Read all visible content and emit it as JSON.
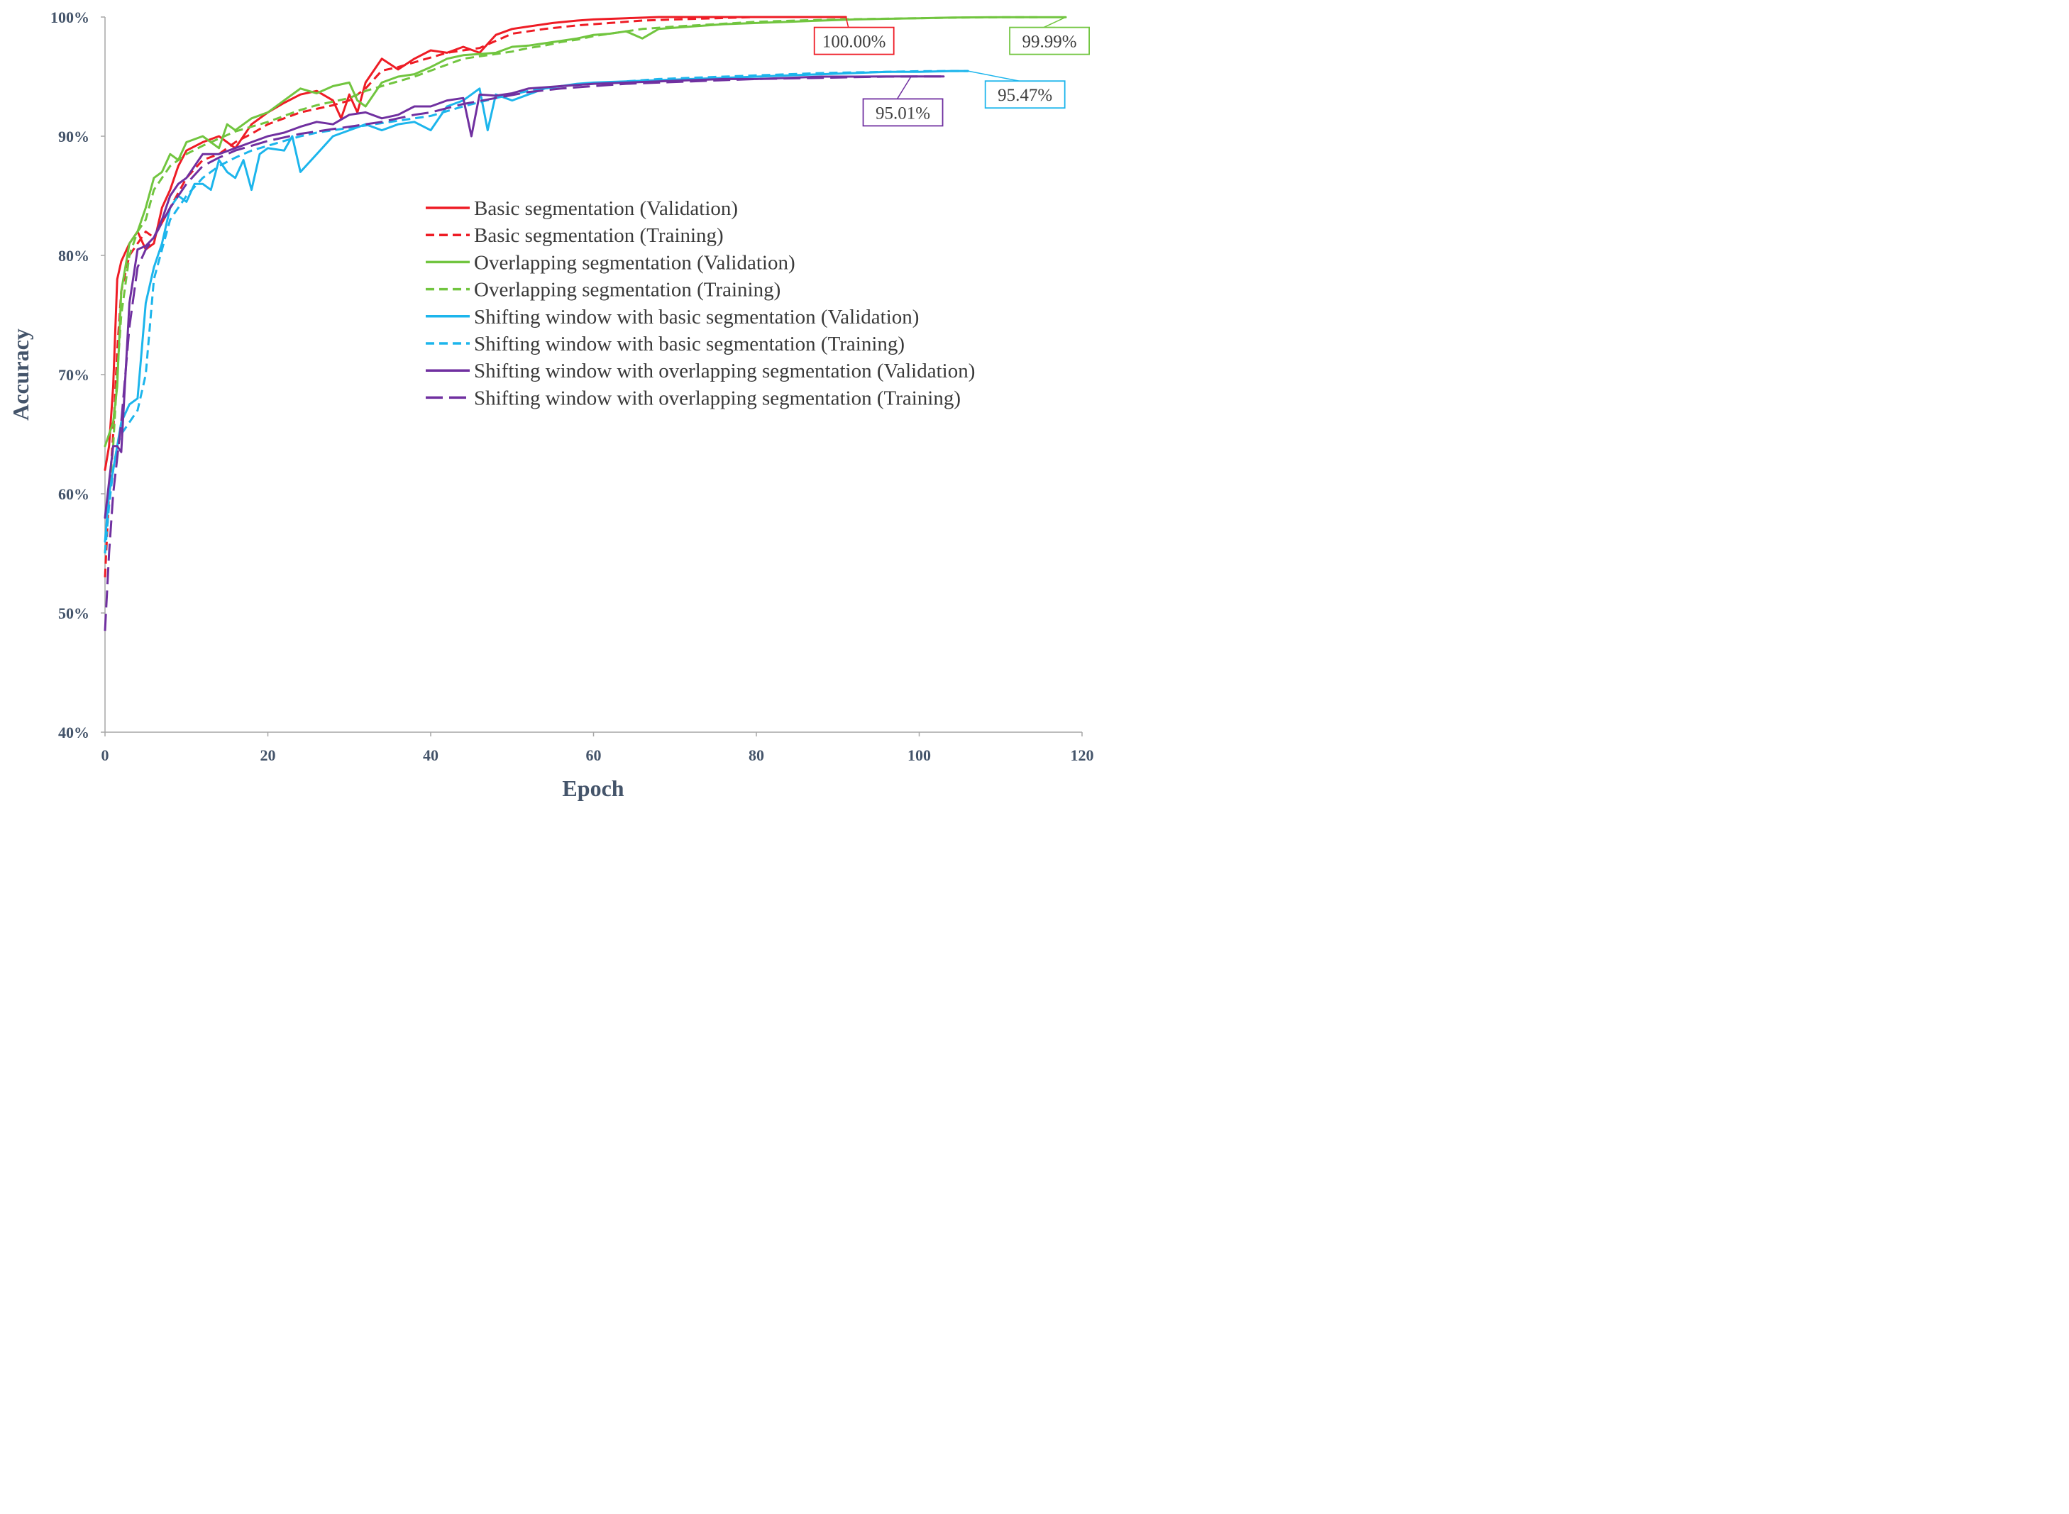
{
  "chart_data": {
    "type": "line",
    "xlabel": "Epoch",
    "ylabel": "Accuracy",
    "xlim": [
      0,
      120
    ],
    "ylim": [
      40,
      100
    ],
    "xticks": [
      "0",
      "20",
      "40",
      "60",
      "80",
      "100",
      "120"
    ],
    "yticks": [
      "40%",
      "50%",
      "60%",
      "70%",
      "80%",
      "90%",
      "100%"
    ],
    "grid": false,
    "legend_position": "center-right",
    "series": [
      {
        "name": "Basic segmentation (Validation)",
        "color": "#ee1c25",
        "dash": "solid",
        "x": [
          0,
          0.5,
          1,
          1.5,
          2,
          3,
          4,
          5,
          6,
          7,
          8,
          9,
          10,
          12,
          14,
          16,
          18,
          20,
          22,
          24,
          26,
          28,
          29,
          30,
          31,
          32,
          34,
          36,
          38,
          40,
          42,
          44,
          46,
          48,
          50,
          52,
          55,
          58,
          60,
          64,
          68,
          72,
          80,
          88,
          91
        ],
        "y": [
          62,
          64,
          69,
          78,
          79.5,
          81,
          82,
          80.5,
          81,
          84,
          85.5,
          87.5,
          88.8,
          89.5,
          90,
          89,
          91,
          92,
          92.8,
          93.5,
          93.8,
          93,
          91.5,
          93.5,
          92,
          94.5,
          96.5,
          95.6,
          96.5,
          97.2,
          97,
          97.5,
          97,
          98.5,
          99,
          99.2,
          99.5,
          99.7,
          99.8,
          99.9,
          100,
          100,
          100,
          100,
          100
        ]
      },
      {
        "name": "Basic segmentation (Training)",
        "color": "#ee1c25",
        "dash": "dashed",
        "x": [
          0,
          0.5,
          1,
          1.5,
          2,
          3,
          4,
          5,
          6,
          8,
          10,
          12,
          14,
          16,
          18,
          20,
          22,
          24,
          26,
          28,
          30,
          32,
          34,
          36,
          38,
          40,
          42,
          44,
          46,
          48,
          50,
          54,
          58,
          62,
          66,
          70,
          75,
          80,
          85,
          90
        ],
        "y": [
          53,
          60,
          65,
          72,
          77,
          80,
          81,
          82,
          81.5,
          84,
          86.5,
          88,
          88.5,
          89.5,
          90.2,
          91,
          91.5,
          92,
          92.3,
          92.6,
          93,
          94,
          95.5,
          95.8,
          96.2,
          96.6,
          97,
          97.2,
          97.4,
          98,
          98.6,
          99,
          99.3,
          99.5,
          99.7,
          99.8,
          99.9,
          100,
          100,
          100
        ]
      },
      {
        "name": "Overlapping segmentation (Validation)",
        "color": "#71c53f",
        "dash": "solid",
        "x": [
          0,
          0.5,
          1,
          1.5,
          2,
          3,
          4,
          5,
          6,
          7,
          8,
          9,
          10,
          12,
          13,
          14,
          15,
          16,
          18,
          20,
          22,
          24,
          26,
          28,
          30,
          31,
          32,
          34,
          36,
          38,
          40,
          42,
          44,
          46,
          48,
          50,
          52,
          54,
          56,
          58,
          60,
          62,
          64,
          66,
          68,
          72,
          76,
          80,
          84,
          88,
          92,
          96,
          100,
          104,
          110,
          118
        ],
        "y": [
          64,
          65,
          66,
          69,
          77,
          81,
          82,
          84,
          86.5,
          87,
          88.5,
          88,
          89.5,
          90,
          89.5,
          89,
          91,
          90.5,
          91.5,
          92,
          93,
          94,
          93.6,
          94.2,
          94.5,
          93,
          92.5,
          94.5,
          95,
          95.2,
          95.8,
          96.5,
          96.8,
          96.9,
          97,
          97.5,
          97.6,
          97.8,
          98,
          98.2,
          98.5,
          98.6,
          98.8,
          98.2,
          99,
          99.2,
          99.4,
          99.5,
          99.6,
          99.7,
          99.8,
          99.85,
          99.9,
          99.95,
          99.99,
          99.99
        ]
      },
      {
        "name": "Overlapping segmentation (Training)",
        "color": "#71c53f",
        "dash": "dashed",
        "x": [
          0,
          0.5,
          1,
          1.5,
          2,
          3,
          4,
          5,
          6,
          8,
          10,
          12,
          14,
          16,
          18,
          20,
          22,
          24,
          26,
          28,
          30,
          32,
          34,
          36,
          38,
          40,
          42,
          44,
          46,
          48,
          50,
          52,
          54,
          56,
          58,
          60,
          62,
          64,
          66,
          70,
          75,
          80,
          85,
          90,
          95,
          100,
          105,
          110,
          115
        ],
        "y": [
          55,
          60,
          64,
          70,
          75,
          80,
          82,
          83,
          85.5,
          87.5,
          88.5,
          89.2,
          89.8,
          90.4,
          90.8,
          91.2,
          91.7,
          92.2,
          92.6,
          92.9,
          93.2,
          93.8,
          94.2,
          94.6,
          95,
          95.5,
          96,
          96.5,
          96.7,
          96.9,
          97.1,
          97.4,
          97.6,
          97.9,
          98.1,
          98.4,
          98.6,
          98.8,
          99,
          99.2,
          99.4,
          99.6,
          99.7,
          99.8,
          99.85,
          99.9,
          99.95,
          99.98,
          99.99
        ]
      },
      {
        "name": "Shifting window with basic segmentation (Validation)",
        "color": "#1cb5ec",
        "dash": "solid",
        "x": [
          0,
          0.5,
          1,
          1.5,
          2,
          3,
          4,
          5,
          6,
          7,
          8,
          9,
          10,
          11,
          12,
          13,
          14,
          15,
          16,
          17,
          18,
          19,
          20,
          22,
          23,
          24,
          26,
          28,
          30,
          32,
          34,
          36,
          38,
          40,
          42,
          44,
          45,
          46,
          47,
          48,
          50,
          52,
          54,
          56,
          58,
          60,
          64,
          68,
          72,
          76,
          80,
          84,
          88,
          92,
          96,
          100,
          104,
          106
        ],
        "y": [
          56,
          60,
          62,
          64,
          66,
          67.5,
          68,
          76,
          79,
          81,
          84,
          85,
          84.5,
          86,
          86,
          85.5,
          88,
          87,
          86.5,
          88,
          85.5,
          88.5,
          89,
          88.8,
          90,
          87,
          88.5,
          90,
          90.5,
          91,
          90.5,
          91,
          91.2,
          90.5,
          92.5,
          93,
          93.5,
          94,
          90.5,
          93.5,
          93,
          93.5,
          94,
          94.2,
          94.4,
          94.5,
          94.6,
          94.7,
          94.8,
          94.9,
          95,
          95.1,
          95.2,
          95.3,
          95.4,
          95.4,
          95.47,
          95.47
        ]
      },
      {
        "name": "Shifting window with basic segmentation (Training)",
        "color": "#1cb5ec",
        "dash": "dashed",
        "x": [
          0,
          0.5,
          1,
          1.5,
          2,
          3,
          4,
          5,
          6,
          8,
          10,
          12,
          14,
          16,
          18,
          20,
          22,
          24,
          26,
          28,
          30,
          32,
          34,
          36,
          38,
          40,
          44,
          48,
          52,
          56,
          60,
          64,
          68,
          72,
          76,
          80,
          84,
          88,
          92,
          96,
          100,
          104,
          106
        ],
        "y": [
          55,
          59,
          62,
          64,
          65,
          66,
          67,
          70,
          78,
          83,
          85,
          86.5,
          87.5,
          88.2,
          88.8,
          89.2,
          89.6,
          90,
          90.3,
          90.5,
          90.7,
          90.9,
          91.1,
          91.3,
          91.5,
          91.7,
          92.5,
          93.2,
          93.8,
          94.2,
          94.4,
          94.6,
          94.8,
          94.9,
          95,
          95.1,
          95.2,
          95.3,
          95.35,
          95.4,
          95.45,
          95.47,
          95.47
        ]
      },
      {
        "name": "Shifting window with overlapping segmentation (Validation)",
        "color": "#7030a0",
        "dash": "solid",
        "x": [
          0,
          0.5,
          1,
          1.5,
          2,
          3,
          4,
          5,
          6,
          7,
          8,
          9,
          10,
          12,
          14,
          16,
          18,
          20,
          22,
          24,
          26,
          28,
          30,
          32,
          34,
          36,
          38,
          40,
          42,
          44,
          45,
          46,
          48,
          50,
          52,
          54,
          56,
          58,
          60,
          64,
          68,
          72,
          76,
          80,
          84,
          88,
          92,
          96,
          100,
          103
        ],
        "y": [
          58,
          61,
          64,
          64,
          63.5,
          76,
          80.5,
          80.8,
          81.5,
          83,
          85,
          86,
          86.5,
          88.5,
          88.5,
          89,
          89.5,
          90,
          90.3,
          90.8,
          91.2,
          91,
          91.8,
          92,
          91.5,
          91.8,
          92.5,
          92.5,
          93,
          93.2,
          90,
          93.5,
          93.4,
          93.6,
          94,
          94.1,
          94.2,
          94.3,
          94.4,
          94.5,
          94.6,
          94.7,
          94.8,
          94.8,
          94.9,
          95,
          95,
          95.01,
          95.01,
          95.01
        ]
      },
      {
        "name": "Shifting window with overlapping segmentation (Training)",
        "color": "#7030a0",
        "dash": "longdash",
        "x": [
          0,
          0.5,
          1,
          1.5,
          2,
          3,
          4,
          5,
          6,
          8,
          10,
          12,
          14,
          16,
          18,
          20,
          22,
          24,
          26,
          28,
          30,
          32,
          34,
          36,
          38,
          40,
          44,
          48,
          52,
          56,
          60,
          64,
          68,
          72,
          76,
          80,
          84,
          88,
          92,
          96,
          100,
          103
        ],
        "y": [
          48.5,
          55,
          60,
          63,
          66,
          74,
          79,
          80.5,
          81.5,
          84,
          86,
          87.5,
          88.2,
          88.8,
          89.2,
          89.6,
          89.9,
          90.2,
          90.4,
          90.6,
          90.8,
          91,
          91.2,
          91.5,
          91.8,
          92,
          92.7,
          93.2,
          93.7,
          94,
          94.2,
          94.4,
          94.5,
          94.6,
          94.7,
          94.8,
          94.85,
          94.9,
          94.95,
          95,
          95.01,
          95.01
        ]
      }
    ],
    "annotations": [
      {
        "text": "100.00%",
        "color": "#ee1c25",
        "point": [
          91,
          100
        ],
        "label_at": [
          92,
          98
        ]
      },
      {
        "text": "99.99%",
        "color": "#71c53f",
        "point": [
          118,
          99.99
        ],
        "label_at": [
          116,
          98
        ]
      },
      {
        "text": "95.47%",
        "color": "#1cb5ec",
        "point": [
          106,
          95.47
        ],
        "label_at": [
          113,
          93.5
        ]
      },
      {
        "text": "95.01%",
        "color": "#7030a0",
        "point": [
          99,
          95.01
        ],
        "label_at": [
          98,
          92
        ]
      }
    ]
  }
}
